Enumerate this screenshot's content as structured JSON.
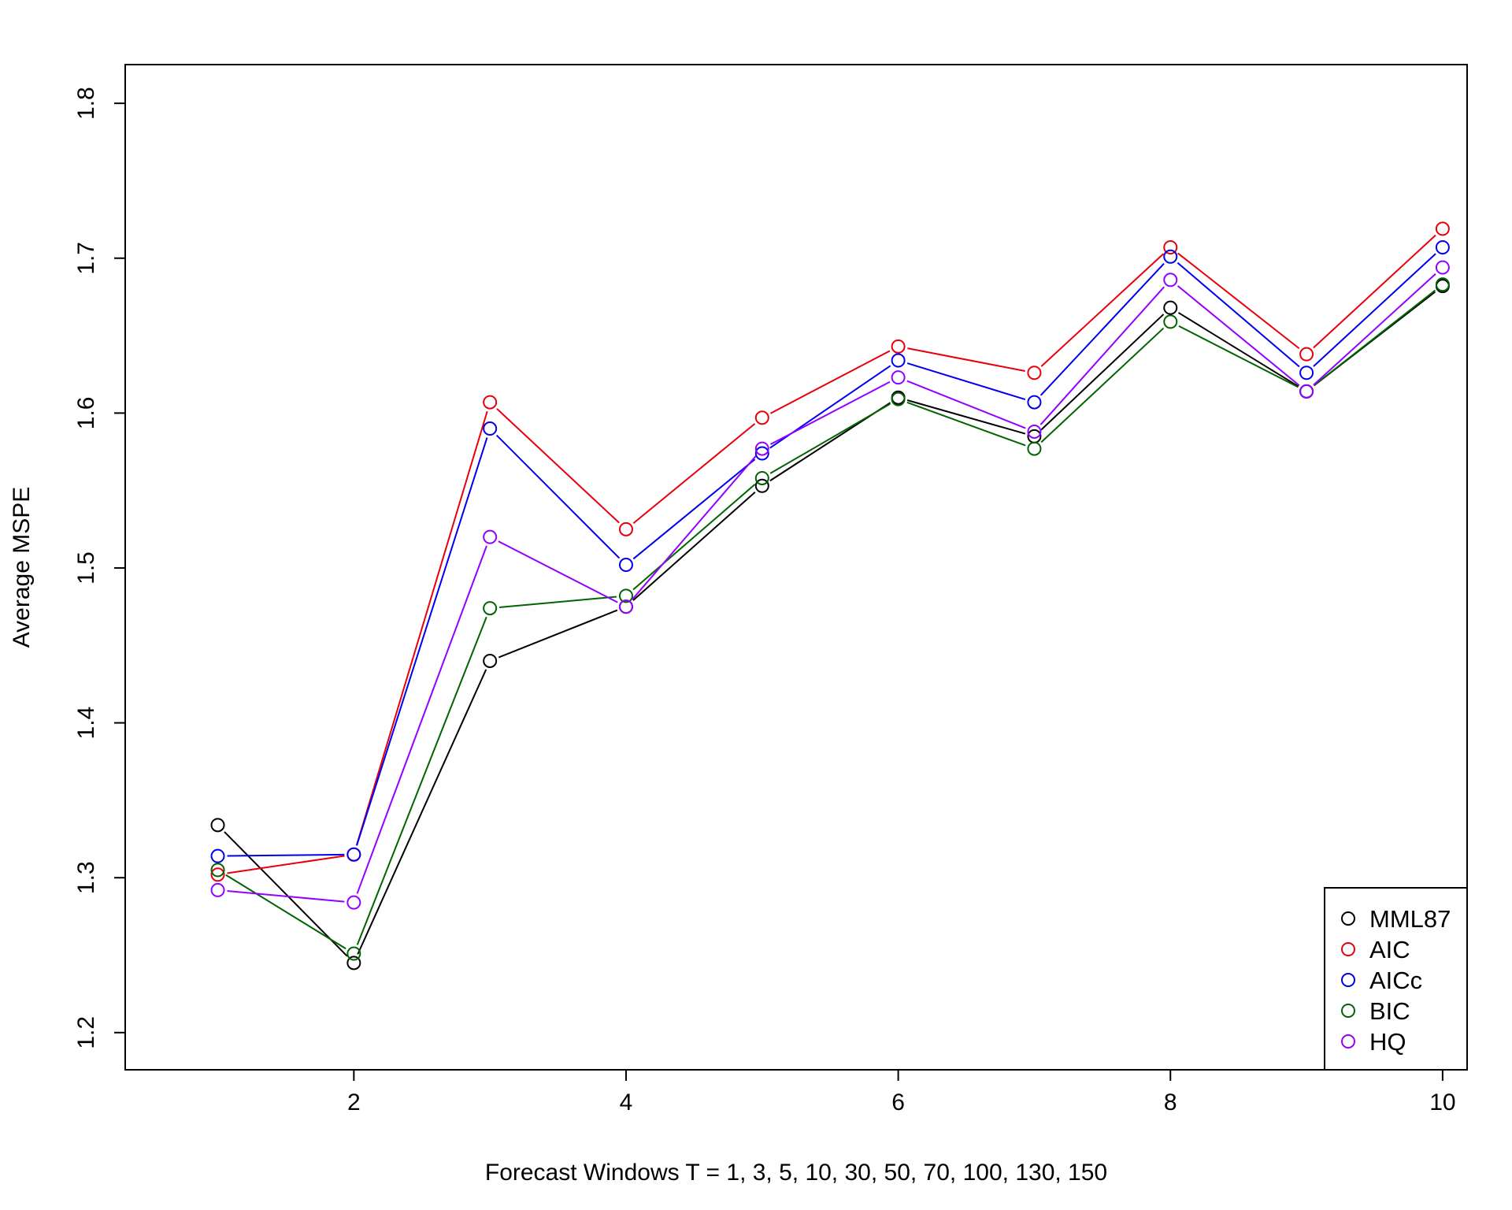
{
  "chart_data": {
    "type": "line",
    "title": "",
    "xlabel": "Forecast Windows T = 1, 3, 5, 10, 30, 50, 70, 100, 130, 150",
    "ylabel": "Average MSPE",
    "x": [
      1,
      2,
      3,
      4,
      5,
      6,
      7,
      8,
      9,
      10
    ],
    "xlim": [
      0.32,
      10.18
    ],
    "ylim": [
      1.176,
      1.825
    ],
    "xticks": [
      2,
      4,
      6,
      8,
      10
    ],
    "xtick_labels": [
      "2",
      "4",
      "6",
      "8",
      "10"
    ],
    "yticks": [
      1.2,
      1.3,
      1.4,
      1.5,
      1.6,
      1.7,
      1.8
    ],
    "ytick_labels": [
      "1.2",
      "1.3",
      "1.4",
      "1.5",
      "1.6",
      "1.7",
      "1.8"
    ],
    "grid": false,
    "legend_position": "bottom-right",
    "series": [
      {
        "name": "MML87",
        "color": "#000000",
        "values": [
          1.334,
          1.245,
          1.44,
          1.475,
          1.553,
          1.61,
          1.585,
          1.668,
          1.614,
          1.682
        ]
      },
      {
        "name": "AIC",
        "color": "#e8000b",
        "values": [
          1.302,
          1.315,
          1.607,
          1.525,
          1.597,
          1.643,
          1.626,
          1.707,
          1.638,
          1.719
        ]
      },
      {
        "name": "AICc",
        "color": "#0000ee",
        "values": [
          1.314,
          1.315,
          1.59,
          1.502,
          1.574,
          1.634,
          1.607,
          1.701,
          1.626,
          1.707
        ]
      },
      {
        "name": "BIC",
        "color": "#006400",
        "values": [
          1.305,
          1.251,
          1.474,
          1.482,
          1.558,
          1.609,
          1.577,
          1.659,
          1.614,
          1.683
        ]
      },
      {
        "name": "HQ",
        "color": "#9400ff",
        "values": [
          1.292,
          1.284,
          1.52,
          1.475,
          1.577,
          1.623,
          1.588,
          1.686,
          1.614,
          1.694
        ]
      }
    ]
  }
}
